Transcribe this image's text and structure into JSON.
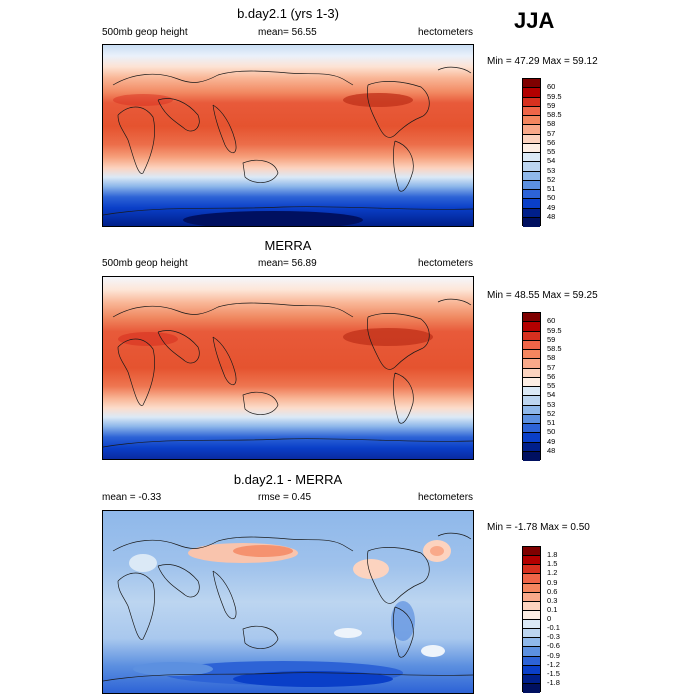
{
  "season": "JJA",
  "panels": [
    {
      "title": "b.day2.1 (yrs 1-3)",
      "left_text": "500mb geop height",
      "center_text": "mean=  56.55",
      "right_text": "hectometers",
      "minmax": "Min = 47.29 Max = 59.12",
      "colorbar": [
        "60",
        "59.5",
        "59",
        "58.5",
        "58",
        "57",
        "56",
        "55",
        "54",
        "53",
        "52",
        "51",
        "50",
        "49",
        "48"
      ]
    },
    {
      "title": "MERRA",
      "left_text": "500mb geop height",
      "center_text": "mean=  56.89",
      "right_text": "hectometers",
      "minmax": "Min = 48.55 Max = 59.25",
      "colorbar": [
        "60",
        "59.5",
        "59",
        "58.5",
        "58",
        "57",
        "56",
        "55",
        "54",
        "53",
        "52",
        "51",
        "50",
        "49",
        "48"
      ]
    },
    {
      "title": "b.day2.1 - MERRA",
      "left_text": "mean =  -0.33",
      "center_text": "rmse =   0.45",
      "right_text": "hectometers",
      "minmax": "Min = -1.78 Max =   0.50",
      "colorbar": [
        "1.8",
        "1.5",
        "1.2",
        "0.9",
        "0.6",
        "0.3",
        "0.1",
        "0",
        "-0.1",
        "-0.3",
        "-0.6",
        "-0.9",
        "-1.2",
        "-1.5",
        "-1.8"
      ]
    }
  ],
  "colors": {
    "scale": [
      "#7f0000",
      "#b30000",
      "#d7301f",
      "#ef6548",
      "#f4865f",
      "#f9a98a",
      "#fcd3bf",
      "#fdeee4",
      "#dbe9f6",
      "#bcd5f0",
      "#8fb8ea",
      "#5c90e0",
      "#2d63d6",
      "#0a3fc8",
      "#001f8a",
      "#001060"
    ]
  }
}
